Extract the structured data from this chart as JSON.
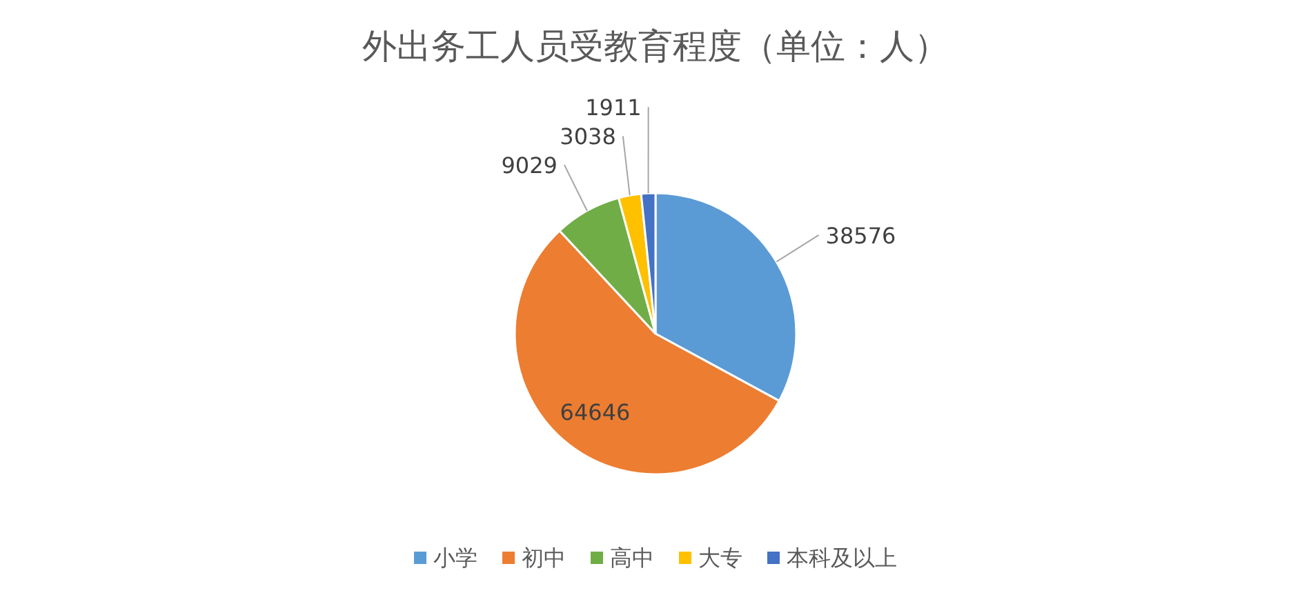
{
  "chart_data": {
    "type": "pie",
    "title": "外出务工人员受教育程度（单位：人）",
    "categories": [
      "小学",
      "初中",
      "高中",
      "大专",
      "本科及以上"
    ],
    "values": [
      38576,
      64646,
      9029,
      3038,
      1911
    ],
    "colors": [
      "#5b9bd5",
      "#ed7d31",
      "#70ad47",
      "#ffc000",
      "#4472c4"
    ],
    "data_labels": true,
    "legend": "bottom"
  }
}
